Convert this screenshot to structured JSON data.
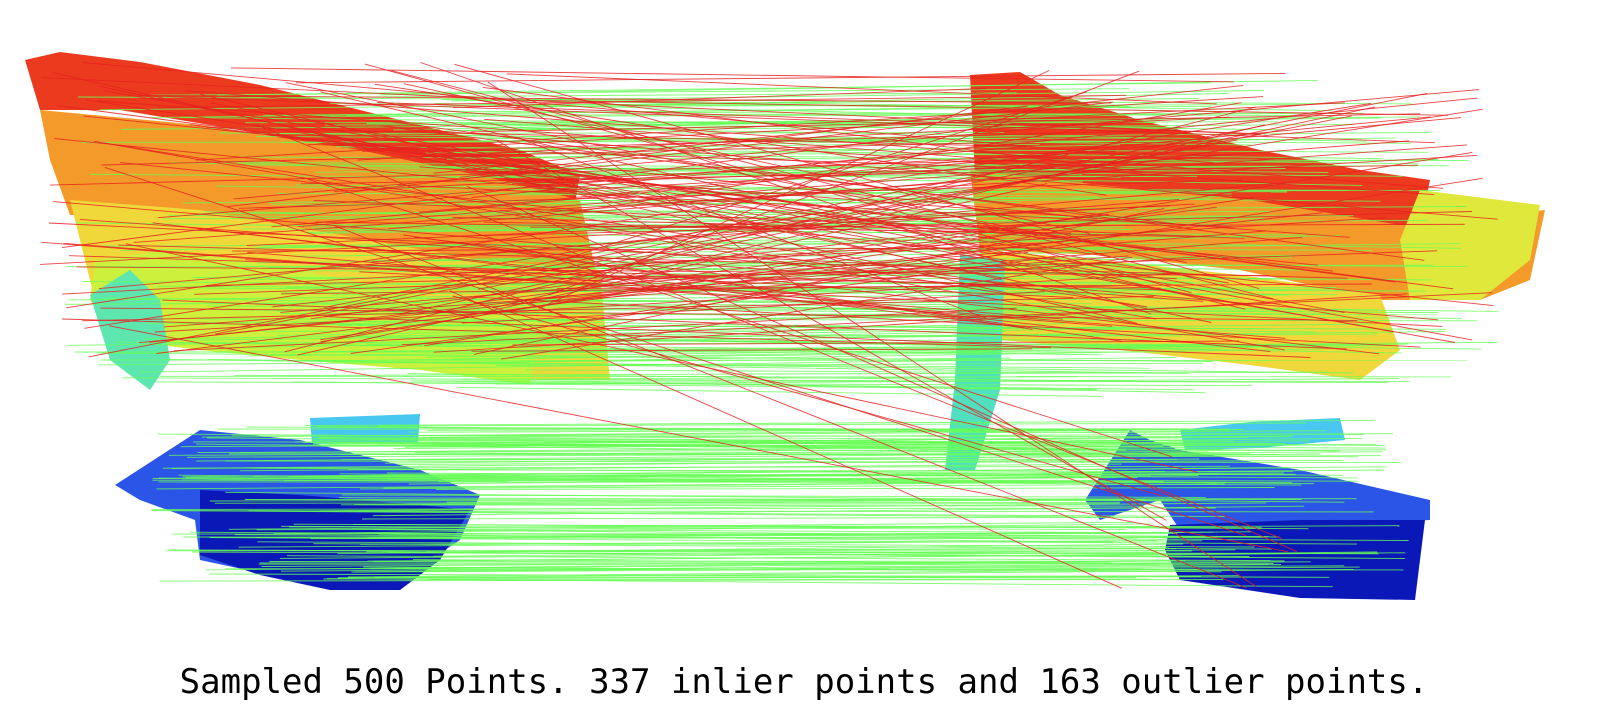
{
  "caption": "Sampled 500 Points. 337 inlier points and 163 outlier points.",
  "summary": {
    "sampled_points": 500,
    "inlier_points": 337,
    "outlier_points": 163
  },
  "colors": {
    "inlier_line": "#66ff55",
    "outlier_line": "#e82020",
    "colormap": "jet",
    "background": "#ffffff"
  }
}
